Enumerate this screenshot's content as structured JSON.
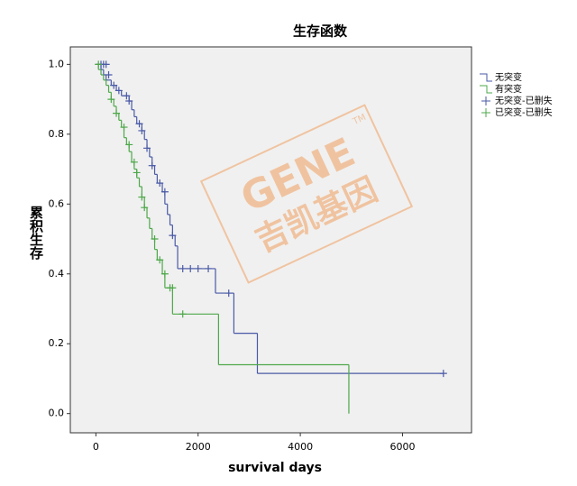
{
  "chart_data": {
    "type": "survival-step",
    "title": "生存函数",
    "x_label": "survival days",
    "y_label": "累积生存",
    "xlim": [
      -500,
      7350
    ],
    "xticks": [
      0,
      2000,
      4000,
      6000
    ],
    "ylim": [
      -0.055,
      1.05
    ],
    "yticks": [
      {
        "value": 0,
        "label": "0.0"
      },
      0.2,
      0.4,
      0.6,
      0.8,
      {
        "value": 1,
        "label": "1.0"
      }
    ],
    "series": [
      {
        "name": "无突变",
        "color": "#4a5aa6",
        "kind": "step",
        "x": [
          0,
          100,
          150,
          200,
          300,
          400,
          500,
          650,
          700,
          750,
          800,
          900,
          950,
          1000,
          1050,
          1100,
          1150,
          1200,
          1300,
          1350,
          1400,
          1450,
          1500,
          1550,
          1600,
          2340,
          2700,
          3160,
          6800
        ],
        "values": [
          1.0,
          0.985,
          0.97,
          0.955,
          0.94,
          0.925,
          0.91,
          0.895,
          0.87,
          0.85,
          0.83,
          0.81,
          0.785,
          0.76,
          0.735,
          0.71,
          0.685,
          0.66,
          0.635,
          0.6,
          0.57,
          0.54,
          0.51,
          0.48,
          0.415,
          0.345,
          0.23,
          0.115,
          0.115
        ]
      },
      {
        "name": "有突变",
        "color": "#4ea84a",
        "kind": "step",
        "x": [
          0,
          50,
          100,
          150,
          200,
          250,
          300,
          350,
          400,
          450,
          500,
          550,
          600,
          650,
          700,
          750,
          800,
          850,
          900,
          950,
          1000,
          1050,
          1100,
          1150,
          1200,
          1300,
          1350,
          1500,
          2400,
          4950
        ],
        "values": [
          1.0,
          0.985,
          0.97,
          0.955,
          0.94,
          0.92,
          0.9,
          0.88,
          0.86,
          0.84,
          0.82,
          0.79,
          0.77,
          0.75,
          0.72,
          0.7,
          0.675,
          0.65,
          0.62,
          0.59,
          0.56,
          0.53,
          0.5,
          0.47,
          0.44,
          0.4,
          0.36,
          0.285,
          0.14,
          0.0
        ]
      },
      {
        "name": "无突变-已删失",
        "color": "#4a5aa6",
        "kind": "censor",
        "x": [
          100,
          150,
          200,
          250,
          350,
          450,
          600,
          650,
          850,
          900,
          1000,
          1100,
          1250,
          1350,
          1500,
          1700,
          1850,
          2000,
          2200,
          2600,
          6800
        ],
        "values": [
          1.0,
          1.0,
          1.0,
          0.97,
          0.94,
          0.925,
          0.91,
          0.895,
          0.83,
          0.81,
          0.76,
          0.71,
          0.66,
          0.635,
          0.51,
          0.415,
          0.415,
          0.415,
          0.415,
          0.345,
          0.115
        ]
      },
      {
        "name": "已突变-已删失",
        "color": "#4ea84a",
        "kind": "censor",
        "x": [
          50,
          300,
          400,
          550,
          650,
          750,
          800,
          900,
          950,
          1150,
          1250,
          1350,
          1450,
          1500,
          1700
        ],
        "values": [
          1.0,
          0.9,
          0.86,
          0.82,
          0.77,
          0.72,
          0.69,
          0.62,
          0.59,
          0.5,
          0.44,
          0.4,
          0.36,
          0.36,
          0.285
        ]
      }
    ],
    "watermark": {
      "logo": "GENE",
      "tm": "TM",
      "name": "吉凯基因"
    }
  }
}
